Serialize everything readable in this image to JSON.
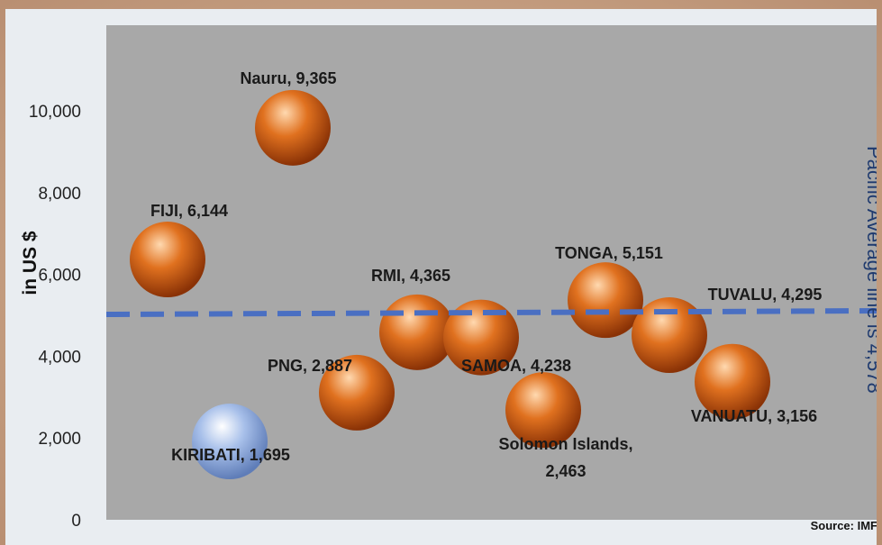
{
  "chart_data": {
    "type": "scatter",
    "title": "",
    "xlabel": "",
    "ylabel": "in US $",
    "ylim": [
      0,
      11000
    ],
    "yticks": [
      0,
      2000,
      4000,
      6000,
      8000,
      10000
    ],
    "ytick_labels": [
      "0",
      "2,000",
      "4,000",
      "6,000",
      "8,000",
      "10,000"
    ],
    "grid": false,
    "points": [
      {
        "label": "FIJI,  6,144",
        "value": 6144,
        "color": "#d9620f"
      },
      {
        "label": "KIRIBATI, 1,695",
        "value": 1695,
        "color": "#9db4e0"
      },
      {
        "label": "Nauru,  9,365",
        "value": 9365,
        "color": "#d9620f"
      },
      {
        "label": "PNG,  2,887",
        "value": 2887,
        "color": "#d9620f"
      },
      {
        "label": "RMI,  4,365",
        "value": 4365,
        "color": "#d9620f"
      },
      {
        "label": "SAMOA,  4,238",
        "value": 4238,
        "color": "#d9620f"
      },
      {
        "label": "Solomon Islands,\n2,463",
        "value": 2463,
        "color": "#d9620f"
      },
      {
        "label": "TONGA,  5,151",
        "value": 5151,
        "color": "#d9620f"
      },
      {
        "label": "TUVALU,  4,295",
        "value": 4295,
        "color": "#d9620f"
      },
      {
        "label": "VANUATU,  3,156",
        "value": 3156,
        "color": "#d9620f"
      }
    ],
    "average_line": {
      "label": "Pacific Average line is 4,578",
      "value": 4578,
      "color": "#4a6fc2"
    },
    "source": "Source: IMF",
    "plot_background": "#a8a8a8",
    "page_background": "#e9edf1"
  }
}
